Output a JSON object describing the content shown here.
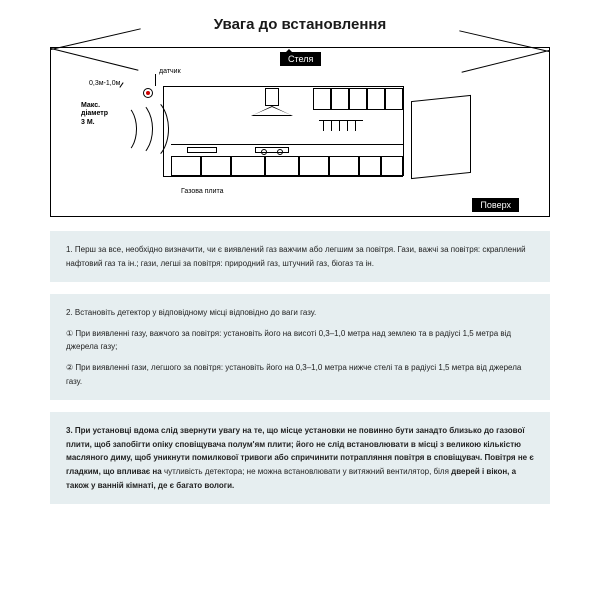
{
  "title": "Увага до встановлення",
  "diagram": {
    "ceiling": "Стеля",
    "floor": "Поверх",
    "sensor": "датчик",
    "height_range": "0,3м-1,0м",
    "max_diameter_l1": "Макс.",
    "max_diameter_l2": "діаметр",
    "max_diameter_l3": "3 М.",
    "stove": "Газова плита"
  },
  "boxes": {
    "b1": {
      "p1": "1. Перш за все, необхідно визначити, чи є виявлений газ важчим або легшим за повітря. Гази, важчі за повітря: скраплений нафтовий газ та ін.; гази, легші за повітря: природний газ, штучний газ, біогаз та ін."
    },
    "b2": {
      "p1": "2. Встановіть детектор у відповідному місці відповідно до ваги газу.",
      "p2": "① При виявленні газу, важчого за повітря: установіть його на висоті 0,3–1,0 метра над землею та в радіусі 1,5 метра від джерела газу;",
      "p3": "② При виявленні гази, легшого за повітря: установіть його на 0,3–1,0 метра нижче стелі та в радіусі 1,5 метра від джерела газу."
    },
    "b3": {
      "p1a": "3. При установці вдома слід звернути увагу на те, що місце установки не повинно бути занадто близько до газової плити, щоб запобігти опіку сповіщувача полум'ям плити; його не слід встановлювати в місці з великою кількістю масляного диму, щоб уникнути помилкової тривоги або спричинити потрапляння повітря в сповіщувач. Повітря не є гладким, що впливає на ",
      "p1b": "чутливість детектора; не можна встановлювати у витяжний вентилятор, біля",
      "p1c": " дверей і вікон, а також у ванній кімнаті, де є багато вологи."
    }
  },
  "style": {
    "info_bg": "#e6eef0",
    "text_color": "#222222",
    "title_color": "#1a1a1a",
    "font_size_body": 8,
    "font_size_title": 15
  }
}
